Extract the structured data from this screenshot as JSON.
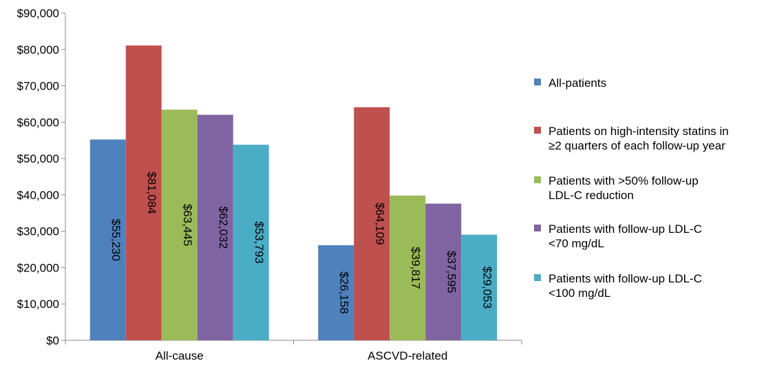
{
  "chart_data": {
    "type": "bar",
    "categories": [
      "All-cause",
      "ASCVD-related"
    ],
    "series": [
      {
        "name": "All-patients",
        "values": [
          55230,
          26158
        ],
        "labels": [
          "$55,230",
          "$26,158"
        ],
        "color": "#4f81bd"
      },
      {
        "name": "Patients on high-intensity statins in ≥2 quarters of each follow-up year",
        "values": [
          81084,
          64109
        ],
        "labels": [
          "$81,084",
          "$64,109"
        ],
        "color": "#c0504d"
      },
      {
        "name": "Patients with >50% follow-up LDL-C reduction",
        "values": [
          63445,
          39817
        ],
        "labels": [
          "$63,445",
          "$39,817"
        ],
        "color": "#9bbb59"
      },
      {
        "name": "Patients with follow-up LDL-C <70 mg/dL",
        "values": [
          62032,
          37595
        ],
        "labels": [
          "$62,032",
          "$37,595"
        ],
        "color": "#8064a2"
      },
      {
        "name": "Patients with follow-up LDL-C <100 mg/dL",
        "values": [
          53793,
          29053
        ],
        "labels": [
          "$53,793",
          "$29,053"
        ],
        "color": "#4bacc6"
      }
    ],
    "legend_lines": [
      [
        "All-patients"
      ],
      [
        "Patients on high-intensity statins in",
        "≥2 quarters of each follow-up year"
      ],
      [
        "Patients with >50% follow-up",
        "LDL-C reduction"
      ],
      [
        "Patients with follow-up LDL-C",
        "<70 mg/dL"
      ],
      [
        "Patients with follow-up LDL-C",
        "<100 mg/dL"
      ]
    ],
    "ylim": [
      0,
      90000
    ],
    "yticks": [
      0,
      10000,
      20000,
      30000,
      40000,
      50000,
      60000,
      70000,
      80000,
      90000
    ],
    "ytick_labels": [
      "$0",
      "$10,000",
      "$20,000",
      "$30,000",
      "$40,000",
      "$50,000",
      "$60,000",
      "$70,000",
      "$80,000",
      "$90,000"
    ],
    "grid": false,
    "legend_position": "right",
    "title": "",
    "xlabel": "",
    "ylabel": ""
  }
}
